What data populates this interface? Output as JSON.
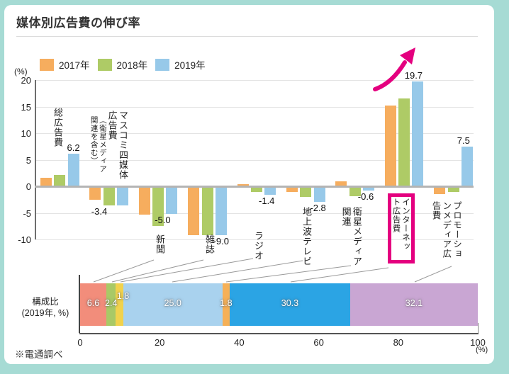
{
  "title": "媒体別広告費の伸び率",
  "source_note": "※電通調べ",
  "colors": {
    "background": "#A6DBD4",
    "card": "#FFFFFF",
    "accent_magenta": "#E4007F",
    "series_2017": "#F6AD5E",
    "series_2018": "#AECB66",
    "series_2019": "#97C9E9",
    "leader_line": "#999999"
  },
  "chart_data": [
    {
      "type": "bar",
      "name": "growth-by-media",
      "title": "媒体別広告費の伸び率",
      "y_unit": "(%)",
      "ylim": [
        -10,
        20
      ],
      "yticks": [
        20,
        15,
        10,
        5,
        0,
        -5,
        -10
      ],
      "grid": true,
      "legend_position": "top",
      "categories": [
        {
          "key": "total-ad-spend",
          "label": "総広告費"
        },
        {
          "key": "four-mass-media",
          "label": "マスコミ四媒体広告費",
          "note": "（衛星メディア関連を含む）"
        },
        {
          "key": "newspapers",
          "label": "新聞"
        },
        {
          "key": "magazines",
          "label": "雑誌"
        },
        {
          "key": "radio",
          "label": "ラジオ"
        },
        {
          "key": "terrestrial-tv",
          "label": "地上波テレビ"
        },
        {
          "key": "satellite-media",
          "label": "衛星メディア関連"
        },
        {
          "key": "internet",
          "label": "インターネット広告費",
          "highlighted": true
        },
        {
          "key": "promotion-media",
          "label": "プロモーションメディア広告費"
        }
      ],
      "series": [
        {
          "name": "2017年",
          "color": "#F6AD5E",
          "values": [
            1.6,
            -2.4,
            -5.2,
            -9.0,
            0.4,
            -0.9,
            1.0,
            15.2,
            -1.3
          ]
        },
        {
          "name": "2018年",
          "color": "#AECB66",
          "values": [
            2.2,
            -3.5,
            -7.3,
            -9.0,
            -0.9,
            -1.8,
            -1.7,
            16.5,
            -0.9
          ]
        },
        {
          "name": "2019年",
          "color": "#97C9E9",
          "values": [
            6.2,
            -3.4,
            -5.0,
            -9.0,
            -1.4,
            -2.8,
            -0.6,
            19.7,
            7.5
          ]
        }
      ],
      "value_labels_series": "2019年",
      "value_labels": [
        "6.2",
        "-3.4",
        "-5.0",
        "-9.0",
        "-1.4",
        "-2.8",
        "-0.6",
        "19.7",
        "7.5"
      ],
      "annotation": {
        "type": "arrow-up",
        "target": "internet",
        "color": "#E4007F"
      }
    },
    {
      "type": "stacked-bar",
      "name": "composition-2019",
      "axis_label_line1": "構成比",
      "axis_label_line2": "(2019年, %)",
      "x_unit": "(%)",
      "xticks": [
        0,
        20,
        40,
        60,
        80,
        100
      ],
      "segments": [
        {
          "key": "newspapers",
          "label": "新聞",
          "value": 6.6,
          "color": "#F28D7B"
        },
        {
          "key": "magazines",
          "label": "雑誌",
          "value": 2.4,
          "color": "#A9C966"
        },
        {
          "key": "radio",
          "label": "ラジオ",
          "value": 1.8,
          "color": "#F1D24D"
        },
        {
          "key": "terrestrial-tv",
          "label": "地上波テレビ",
          "value": 25.0,
          "color": "#A9D2EE"
        },
        {
          "key": "satellite-media",
          "label": "衛星メディア関連",
          "value": 1.8,
          "color": "#F5B057"
        },
        {
          "key": "internet",
          "label": "インターネット広告費",
          "value": 30.3,
          "color": "#2BA4E4"
        },
        {
          "key": "promotion-media",
          "label": "プロモーションメディア広告費",
          "value": 32.1,
          "color": "#C9A6D3"
        }
      ]
    }
  ]
}
